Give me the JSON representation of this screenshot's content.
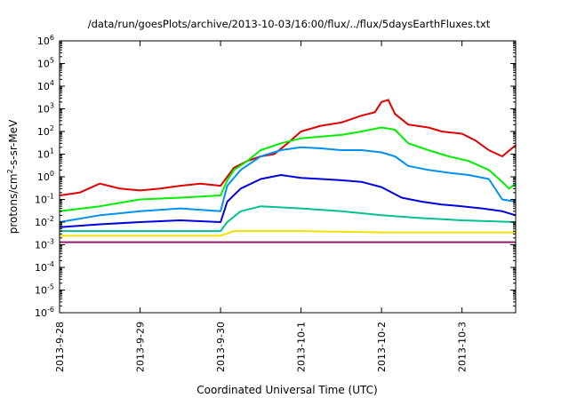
{
  "chart_data": {
    "type": "line",
    "title": "/data/run/goesPlots/archive/2013-10-03/16:00/flux/../flux/5daysEarthFluxes.txt",
    "xlabel": "Coordinated Universal Time (UTC)",
    "ylabel_main": "protons/cm",
    "ylabel_sup": "2",
    "ylabel_rest": "-s-sr-MeV",
    "yscale": "log",
    "x_domain": [
      "2013-09-28 00:00",
      "2013-10-03 16:00"
    ],
    "ylim": [
      1e-06,
      1000000.0
    ],
    "xticks": [
      "2013-9-28",
      "2013-9-29",
      "2013-9-30",
      "2013-10-1",
      "2013-10-2",
      "2013-10-3"
    ],
    "yticks": [
      {
        "base": "10",
        "exp": "-6"
      },
      {
        "base": "10",
        "exp": "-5"
      },
      {
        "base": "10",
        "exp": "-4"
      },
      {
        "base": "10",
        "exp": "-3"
      },
      {
        "base": "10",
        "exp": "-2"
      },
      {
        "base": "10",
        "exp": "-1"
      },
      {
        "base": "10",
        "exp": "0"
      },
      {
        "base": "10",
        "exp": "1"
      },
      {
        "base": "10",
        "exp": "2"
      },
      {
        "base": "10",
        "exp": "3"
      },
      {
        "base": "10",
        "exp": "4"
      },
      {
        "base": "10",
        "exp": "5"
      },
      {
        "base": "10",
        "exp": "6"
      }
    ],
    "grid": false,
    "legend": "none",
    "series": [
      {
        "color": "#e00000",
        "x": [
          "2013-09-28 00:00",
          "2013-09-28 06:00",
          "2013-09-28 12:00",
          "2013-09-28 18:00",
          "2013-09-29 00:00",
          "2013-09-29 06:00",
          "2013-09-29 12:00",
          "2013-09-29 18:00",
          "2013-09-30 00:00",
          "2013-09-30 02:00",
          "2013-09-30 04:00",
          "2013-09-30 08:00",
          "2013-09-30 12:00",
          "2013-09-30 16:00",
          "2013-09-30 20:00",
          "2013-10-01 00:00",
          "2013-10-01 06:00",
          "2013-10-01 12:00",
          "2013-10-01 18:00",
          "2013-10-01 22:00",
          "2013-10-02 00:00",
          "2013-10-02 02:00",
          "2013-10-02 04:00",
          "2013-10-02 08:00",
          "2013-10-02 14:00",
          "2013-10-02 18:00",
          "2013-10-03 00:00",
          "2013-10-03 04:00",
          "2013-10-03 08:00",
          "2013-10-03 12:00",
          "2013-10-03 16:00"
        ],
        "values": [
          0.15,
          0.2,
          0.5,
          0.3,
          0.25,
          0.3,
          0.4,
          0.5,
          0.4,
          1.0,
          2.5,
          5.0,
          8.0,
          10.0,
          30.0,
          100.0,
          180.0,
          250.0,
          500.0,
          700.0,
          2000.0,
          2500.0,
          600.0,
          200.0,
          150.0,
          100.0,
          80.0,
          40.0,
          15.0,
          8.0,
          25.0
        ]
      },
      {
        "color": "#00ee00",
        "x": [
          "2013-09-28 00:00",
          "2013-09-28 12:00",
          "2013-09-29 00:00",
          "2013-09-29 12:00",
          "2013-09-30 00:00",
          "2013-09-30 02:00",
          "2013-09-30 04:00",
          "2013-09-30 08:00",
          "2013-09-30 12:00",
          "2013-09-30 18:00",
          "2013-10-01 00:00",
          "2013-10-01 06:00",
          "2013-10-01 12:00",
          "2013-10-01 18:00",
          "2013-10-02 00:00",
          "2013-10-02 04:00",
          "2013-10-02 08:00",
          "2013-10-02 14:00",
          "2013-10-02 20:00",
          "2013-10-03 02:00",
          "2013-10-03 08:00",
          "2013-10-03 12:00",
          "2013-10-03 14:00",
          "2013-10-03 16:00"
        ],
        "values": [
          0.03,
          0.05,
          0.1,
          0.12,
          0.15,
          0.7,
          2.0,
          5.0,
          15.0,
          30.0,
          50.0,
          60.0,
          70.0,
          100.0,
          150.0,
          120.0,
          30.0,
          15.0,
          8.0,
          5.0,
          2.0,
          0.6,
          0.3,
          0.5
        ]
      },
      {
        "color": "#0090f0",
        "x": [
          "2013-09-28 00:00",
          "2013-09-28 12:00",
          "2013-09-29 00:00",
          "2013-09-29 12:00",
          "2013-09-30 00:00",
          "2013-09-30 02:00",
          "2013-09-30 06:00",
          "2013-09-30 12:00",
          "2013-09-30 18:00",
          "2013-10-01 00:00",
          "2013-10-01 06:00",
          "2013-10-01 12:00",
          "2013-10-01 18:00",
          "2013-10-02 00:00",
          "2013-10-02 04:00",
          "2013-10-02 08:00",
          "2013-10-02 14:00",
          "2013-10-02 20:00",
          "2013-10-03 02:00",
          "2013-10-03 08:00",
          "2013-10-03 12:00",
          "2013-10-03 16:00"
        ],
        "values": [
          0.01,
          0.02,
          0.03,
          0.04,
          0.03,
          0.4,
          2.0,
          8.0,
          15.0,
          20.0,
          18.0,
          15.0,
          15.0,
          12.0,
          8.0,
          3.0,
          2.0,
          1.5,
          1.2,
          0.8,
          0.1,
          0.08
        ]
      },
      {
        "color": "#0000dd",
        "x": [
          "2013-09-28 00:00",
          "2013-09-28 12:00",
          "2013-09-29 00:00",
          "2013-09-29 12:00",
          "2013-09-30 00:00",
          "2013-09-30 02:00",
          "2013-09-30 06:00",
          "2013-09-30 12:00",
          "2013-09-30 18:00",
          "2013-10-01 00:00",
          "2013-10-01 06:00",
          "2013-10-01 12:00",
          "2013-10-01 18:00",
          "2013-10-02 00:00",
          "2013-10-02 06:00",
          "2013-10-02 12:00",
          "2013-10-02 18:00",
          "2013-10-03 00:00",
          "2013-10-03 06:00",
          "2013-10-03 12:00",
          "2013-10-03 16:00"
        ],
        "values": [
          0.006,
          0.008,
          0.01,
          0.012,
          0.01,
          0.08,
          0.3,
          0.8,
          1.2,
          0.9,
          0.8,
          0.7,
          0.6,
          0.35,
          0.12,
          0.08,
          0.06,
          0.05,
          0.04,
          0.03,
          0.02
        ]
      },
      {
        "color": "#00c090",
        "x": [
          "2013-09-28 00:00",
          "2013-09-29 00:00",
          "2013-09-30 00:00",
          "2013-09-30 02:00",
          "2013-09-30 06:00",
          "2013-09-30 12:00",
          "2013-10-01 00:00",
          "2013-10-01 12:00",
          "2013-10-02 00:00",
          "2013-10-02 12:00",
          "2013-10-03 00:00",
          "2013-10-03 16:00"
        ],
        "values": [
          0.004,
          0.004,
          0.004,
          0.01,
          0.03,
          0.05,
          0.04,
          0.03,
          0.02,
          0.015,
          0.012,
          0.01
        ]
      },
      {
        "color": "#f0e000",
        "x": [
          "2013-09-28 00:00",
          "2013-09-29 00:00",
          "2013-09-30 00:00",
          "2013-09-30 04:00",
          "2013-10-01 00:00",
          "2013-10-02 00:00",
          "2013-10-03 00:00",
          "2013-10-03 16:00"
        ],
        "values": [
          0.0025,
          0.0025,
          0.0025,
          0.004,
          0.004,
          0.0035,
          0.0035,
          0.0035
        ]
      },
      {
        "color": "#8b1e6e",
        "x": [
          "2013-09-28 00:00",
          "2013-09-29 00:00",
          "2013-09-30 00:00",
          "2013-10-01 00:00",
          "2013-10-02 00:00",
          "2013-10-03 00:00",
          "2013-10-03 16:00"
        ],
        "values": [
          0.0013,
          0.0013,
          0.0013,
          0.0013,
          0.0013,
          0.0013,
          0.0013
        ]
      }
    ]
  }
}
